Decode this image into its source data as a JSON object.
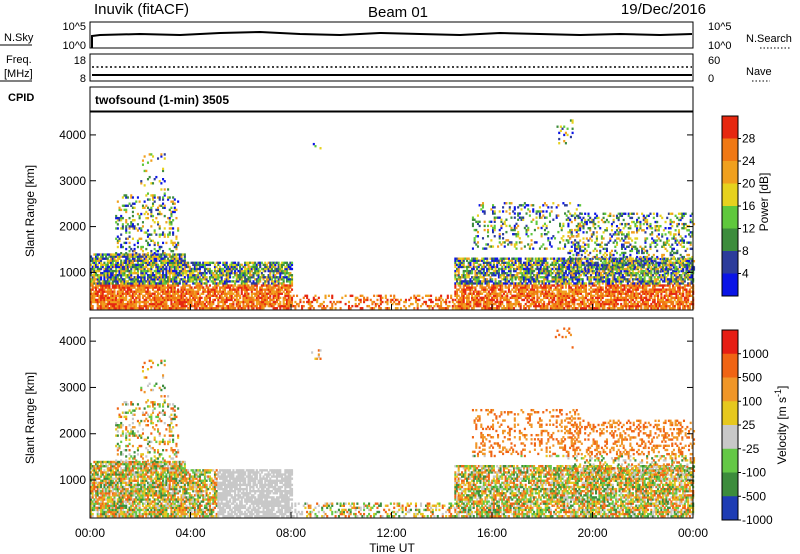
{
  "header": {
    "station": "Inuvik (fitACF)",
    "beam": "Beam 01",
    "date": "19/Dec/2016"
  },
  "panels": {
    "nsky_label": "N.Sky",
    "nsearch_label": "N.Search",
    "freq_label_1": "Freq.",
    "freq_label_2": "[MHz]",
    "nave_label": "Nave",
    "cpid_label": "CPID",
    "cpid_value": "twofsound (1-min) 3505",
    "nsky_ticks": [
      "10^5",
      "10^0"
    ],
    "nsearch_ticks": [
      "10^5",
      "10^0"
    ],
    "freq_ticks": [
      "18",
      "8"
    ],
    "nave_ticks": [
      "60",
      "0"
    ]
  },
  "chart_data": [
    {
      "type": "heatmap",
      "name": "power",
      "ylabel": "Slant Range [km]",
      "xlabel": "",
      "ylim": [
        180,
        4500
      ],
      "yticks": [
        "1000",
        "2000",
        "3000",
        "4000"
      ],
      "colorbar_label": "Power [dB]",
      "colorbar_ticks": [
        "28",
        "24",
        "20",
        "16",
        "12",
        "8",
        "4"
      ],
      "colorbar_colors": [
        "#0a14e6",
        "#2c3c9b",
        "#3c8c3c",
        "#5fc83c",
        "#e6d21e",
        "#f0a01e",
        "#f07814",
        "#e62810"
      ]
    },
    {
      "type": "heatmap",
      "name": "velocity",
      "ylabel": "Slant Range [km]",
      "xlabel": "Time UT",
      "ylim": [
        180,
        4500
      ],
      "yticks": [
        "1000",
        "2000",
        "3000",
        "4000"
      ],
      "xticks": [
        "00:00",
        "04:00",
        "08:00",
        "12:00",
        "16:00",
        "20:00",
        "00:00"
      ],
      "colorbar_label": "Velocity [m s",
      "colorbar_sup": "-1",
      "colorbar_label_end": "]",
      "colorbar_ticks": [
        "1000",
        "500",
        "100",
        "25",
        "-25",
        "-100",
        "-500",
        "-1000"
      ],
      "colorbar_colors": [
        "#1e3cb4",
        "#3c8c3c",
        "#64c846",
        "#c8c8c8",
        "#e6c81e",
        "#f09628",
        "#f06414",
        "#e61e14"
      ]
    }
  ]
}
